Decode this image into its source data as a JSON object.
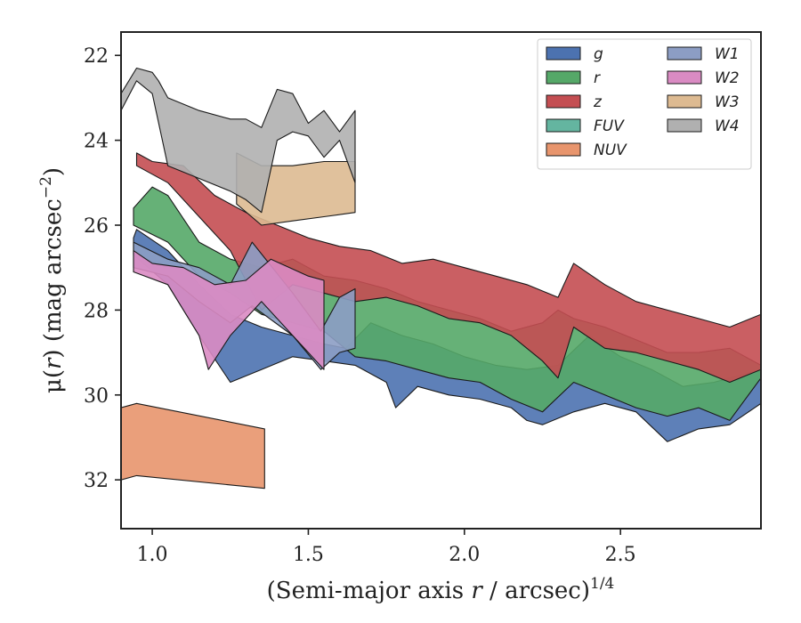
{
  "chart_data": {
    "type": "area",
    "xlabel_text": "(Semi-major axis ",
    "xlabel_var": "r",
    "xlabel_rest": " / arcsec)",
    "xlabel_sup": "1/4",
    "ylabel_pre": "μ(",
    "ylabel_var": "r",
    "ylabel_rest": ") (mag arcsec",
    "ylabel_sup": "−2",
    "ylabel_close": ")",
    "xlim": [
      0.9,
      2.95
    ],
    "ylim": [
      33.15,
      21.45
    ],
    "y_inverted": true,
    "xticks": [
      1.0,
      1.5,
      2.0,
      2.5
    ],
    "xtick_labels": [
      "1.0",
      "1.5",
      "2.0",
      "2.5"
    ],
    "yticks": [
      22,
      24,
      26,
      28,
      30,
      32
    ],
    "ytick_labels": [
      "22",
      "24",
      "26",
      "28",
      "30",
      "32"
    ],
    "grid": false,
    "legend_position": "top-right",
    "legend_columns": 2,
    "series": [
      {
        "name": "g",
        "color": "#4C72B0",
        "upper": [
          [
            0.94,
            26.3
          ],
          [
            0.95,
            26.1
          ],
          [
            1.05,
            26.6
          ],
          [
            1.15,
            27.4
          ],
          [
            1.25,
            28.1
          ],
          [
            1.35,
            28.4
          ],
          [
            1.45,
            28.6
          ],
          [
            1.55,
            28.8
          ],
          [
            1.62,
            28.9
          ],
          [
            1.7,
            28.3
          ],
          [
            1.8,
            28.6
          ],
          [
            1.9,
            28.8
          ],
          [
            2.0,
            29.1
          ],
          [
            2.1,
            29.3
          ],
          [
            2.2,
            29.4
          ],
          [
            2.3,
            29.3
          ],
          [
            2.4,
            28.6
          ],
          [
            2.5,
            29.1
          ],
          [
            2.6,
            29.4
          ],
          [
            2.7,
            29.8
          ],
          [
            2.8,
            29.7
          ],
          [
            2.9,
            29.5
          ],
          [
            2.95,
            29.4
          ]
        ],
        "lower": [
          [
            0.94,
            26.7
          ],
          [
            1.05,
            27.4
          ],
          [
            1.15,
            28.6
          ],
          [
            1.25,
            29.7
          ],
          [
            1.35,
            29.4
          ],
          [
            1.45,
            29.1
          ],
          [
            1.55,
            29.2
          ],
          [
            1.65,
            29.3
          ],
          [
            1.75,
            29.7
          ],
          [
            1.78,
            30.3
          ],
          [
            1.85,
            29.8
          ],
          [
            1.95,
            30.0
          ],
          [
            2.05,
            30.1
          ],
          [
            2.15,
            30.3
          ],
          [
            2.2,
            30.6
          ],
          [
            2.25,
            30.7
          ],
          [
            2.35,
            30.4
          ],
          [
            2.45,
            30.2
          ],
          [
            2.55,
            30.4
          ],
          [
            2.65,
            31.1
          ],
          [
            2.75,
            30.8
          ],
          [
            2.85,
            30.7
          ],
          [
            2.95,
            30.2
          ]
        ]
      },
      {
        "name": "r",
        "color": "#55A868",
        "upper": [
          [
            0.94,
            25.6
          ],
          [
            1.0,
            25.1
          ],
          [
            1.05,
            25.3
          ],
          [
            1.15,
            26.4
          ],
          [
            1.25,
            26.8
          ],
          [
            1.35,
            27.0
          ],
          [
            1.45,
            26.8
          ],
          [
            1.55,
            27.2
          ],
          [
            1.65,
            27.3
          ],
          [
            1.75,
            27.5
          ],
          [
            1.85,
            27.8
          ],
          [
            1.95,
            28.0
          ],
          [
            2.05,
            28.2
          ],
          [
            2.15,
            28.5
          ],
          [
            2.25,
            28.3
          ],
          [
            2.3,
            28.0
          ],
          [
            2.35,
            28.2
          ],
          [
            2.45,
            28.4
          ],
          [
            2.55,
            28.7
          ],
          [
            2.65,
            29.0
          ],
          [
            2.75,
            29.0
          ],
          [
            2.85,
            28.9
          ],
          [
            2.95,
            29.3
          ]
        ],
        "lower": [
          [
            0.94,
            26.0
          ],
          [
            1.05,
            26.4
          ],
          [
            1.15,
            27.2
          ],
          [
            1.25,
            27.6
          ],
          [
            1.35,
            28.1
          ],
          [
            1.45,
            28.3
          ],
          [
            1.55,
            28.5
          ],
          [
            1.65,
            29.1
          ],
          [
            1.75,
            29.2
          ],
          [
            1.85,
            29.4
          ],
          [
            1.95,
            29.6
          ],
          [
            2.05,
            29.7
          ],
          [
            2.15,
            30.1
          ],
          [
            2.25,
            30.4
          ],
          [
            2.35,
            29.7
          ],
          [
            2.45,
            30.0
          ],
          [
            2.55,
            30.3
          ],
          [
            2.65,
            30.5
          ],
          [
            2.75,
            30.3
          ],
          [
            2.85,
            30.6
          ],
          [
            2.95,
            29.6
          ]
        ]
      },
      {
        "name": "z",
        "color": "#C44E52",
        "upper": [
          [
            0.95,
            24.3
          ],
          [
            1.0,
            24.5
          ],
          [
            1.1,
            24.6
          ],
          [
            1.2,
            25.3
          ],
          [
            1.3,
            25.7
          ],
          [
            1.4,
            26.0
          ],
          [
            1.5,
            26.3
          ],
          [
            1.6,
            26.5
          ],
          [
            1.7,
            26.6
          ],
          [
            1.8,
            26.9
          ],
          [
            1.9,
            26.8
          ],
          [
            2.0,
            27.0
          ],
          [
            2.1,
            27.2
          ],
          [
            2.2,
            27.4
          ],
          [
            2.3,
            27.7
          ],
          [
            2.35,
            26.9
          ],
          [
            2.45,
            27.4
          ],
          [
            2.55,
            27.8
          ],
          [
            2.65,
            28.0
          ],
          [
            2.75,
            28.2
          ],
          [
            2.85,
            28.4
          ],
          [
            2.95,
            28.1
          ]
        ],
        "lower": [
          [
            0.95,
            24.6
          ],
          [
            1.05,
            25.0
          ],
          [
            1.15,
            25.8
          ],
          [
            1.25,
            26.6
          ],
          [
            1.35,
            28.0
          ],
          [
            1.45,
            27.4
          ],
          [
            1.55,
            27.6
          ],
          [
            1.65,
            27.8
          ],
          [
            1.75,
            27.7
          ],
          [
            1.85,
            27.9
          ],
          [
            1.95,
            28.2
          ],
          [
            2.05,
            28.3
          ],
          [
            2.15,
            28.6
          ],
          [
            2.25,
            29.2
          ],
          [
            2.3,
            29.6
          ],
          [
            2.35,
            28.4
          ],
          [
            2.45,
            28.9
          ],
          [
            2.55,
            29.0
          ],
          [
            2.65,
            29.2
          ],
          [
            2.75,
            29.4
          ],
          [
            2.85,
            29.7
          ],
          [
            2.95,
            29.4
          ]
        ]
      },
      {
        "name": "FUV",
        "color": "#64B5A0",
        "upper": [],
        "lower": []
      },
      {
        "name": "NUV",
        "color": "#E8956D",
        "upper": [
          [
            0.9,
            30.3
          ],
          [
            0.95,
            30.2
          ],
          [
            1.36,
            30.8
          ]
        ],
        "lower": [
          [
            0.9,
            32.0
          ],
          [
            0.95,
            31.9
          ],
          [
            1.36,
            32.2
          ]
        ]
      },
      {
        "name": "W1",
        "color": "#8C9DC4",
        "upper": [
          [
            0.94,
            26.4
          ],
          [
            1.05,
            26.8
          ],
          [
            1.15,
            27.0
          ],
          [
            1.25,
            27.4
          ],
          [
            1.32,
            26.4
          ],
          [
            1.45,
            27.6
          ],
          [
            1.54,
            28.5
          ],
          [
            1.6,
            27.7
          ],
          [
            1.65,
            27.5
          ]
        ],
        "lower": [
          [
            0.94,
            27.0
          ],
          [
            1.05,
            27.2
          ],
          [
            1.15,
            27.8
          ],
          [
            1.25,
            28.3
          ],
          [
            1.32,
            27.9
          ],
          [
            1.45,
            28.6
          ],
          [
            1.54,
            29.4
          ],
          [
            1.6,
            29.0
          ],
          [
            1.65,
            28.9
          ]
        ]
      },
      {
        "name": "W2",
        "color": "#DA8BC3",
        "upper": [
          [
            0.94,
            26.6
          ],
          [
            1.0,
            26.9
          ],
          [
            1.1,
            27.0
          ],
          [
            1.2,
            27.4
          ],
          [
            1.3,
            27.3
          ],
          [
            1.38,
            26.8
          ],
          [
            1.5,
            27.2
          ],
          [
            1.55,
            27.3
          ]
        ],
        "lower": [
          [
            0.94,
            27.1
          ],
          [
            1.05,
            27.4
          ],
          [
            1.15,
            28.6
          ],
          [
            1.18,
            29.4
          ],
          [
            1.25,
            28.6
          ],
          [
            1.35,
            27.8
          ],
          [
            1.45,
            28.6
          ],
          [
            1.55,
            29.4
          ]
        ]
      },
      {
        "name": "W3",
        "color": "#DDBA91",
        "upper": [
          [
            1.27,
            24.3
          ],
          [
            1.35,
            24.6
          ],
          [
            1.45,
            24.6
          ],
          [
            1.55,
            24.5
          ],
          [
            1.65,
            24.5
          ]
        ],
        "lower": [
          [
            1.27,
            25.5
          ],
          [
            1.35,
            26.0
          ],
          [
            1.45,
            25.9
          ],
          [
            1.55,
            25.8
          ],
          [
            1.65,
            25.7
          ]
        ]
      },
      {
        "name": "W4",
        "color": "#B0B0B0",
        "upper": [
          [
            0.9,
            22.9
          ],
          [
            0.95,
            22.3
          ],
          [
            1.0,
            22.4
          ],
          [
            1.02,
            22.6
          ],
          [
            1.05,
            23.0
          ],
          [
            1.15,
            23.3
          ],
          [
            1.25,
            23.5
          ],
          [
            1.3,
            23.5
          ],
          [
            1.35,
            23.7
          ],
          [
            1.4,
            22.8
          ],
          [
            1.45,
            22.9
          ],
          [
            1.5,
            23.6
          ],
          [
            1.55,
            23.3
          ],
          [
            1.6,
            23.8
          ],
          [
            1.65,
            23.3
          ]
        ],
        "lower": [
          [
            0.9,
            23.3
          ],
          [
            0.95,
            22.6
          ],
          [
            1.0,
            22.9
          ],
          [
            1.05,
            24.6
          ],
          [
            1.15,
            24.9
          ],
          [
            1.25,
            25.2
          ],
          [
            1.3,
            25.4
          ],
          [
            1.35,
            25.7
          ],
          [
            1.4,
            24.0
          ],
          [
            1.45,
            23.8
          ],
          [
            1.5,
            23.9
          ],
          [
            1.55,
            24.4
          ],
          [
            1.6,
            24.0
          ],
          [
            1.65,
            25.0
          ]
        ]
      }
    ]
  }
}
